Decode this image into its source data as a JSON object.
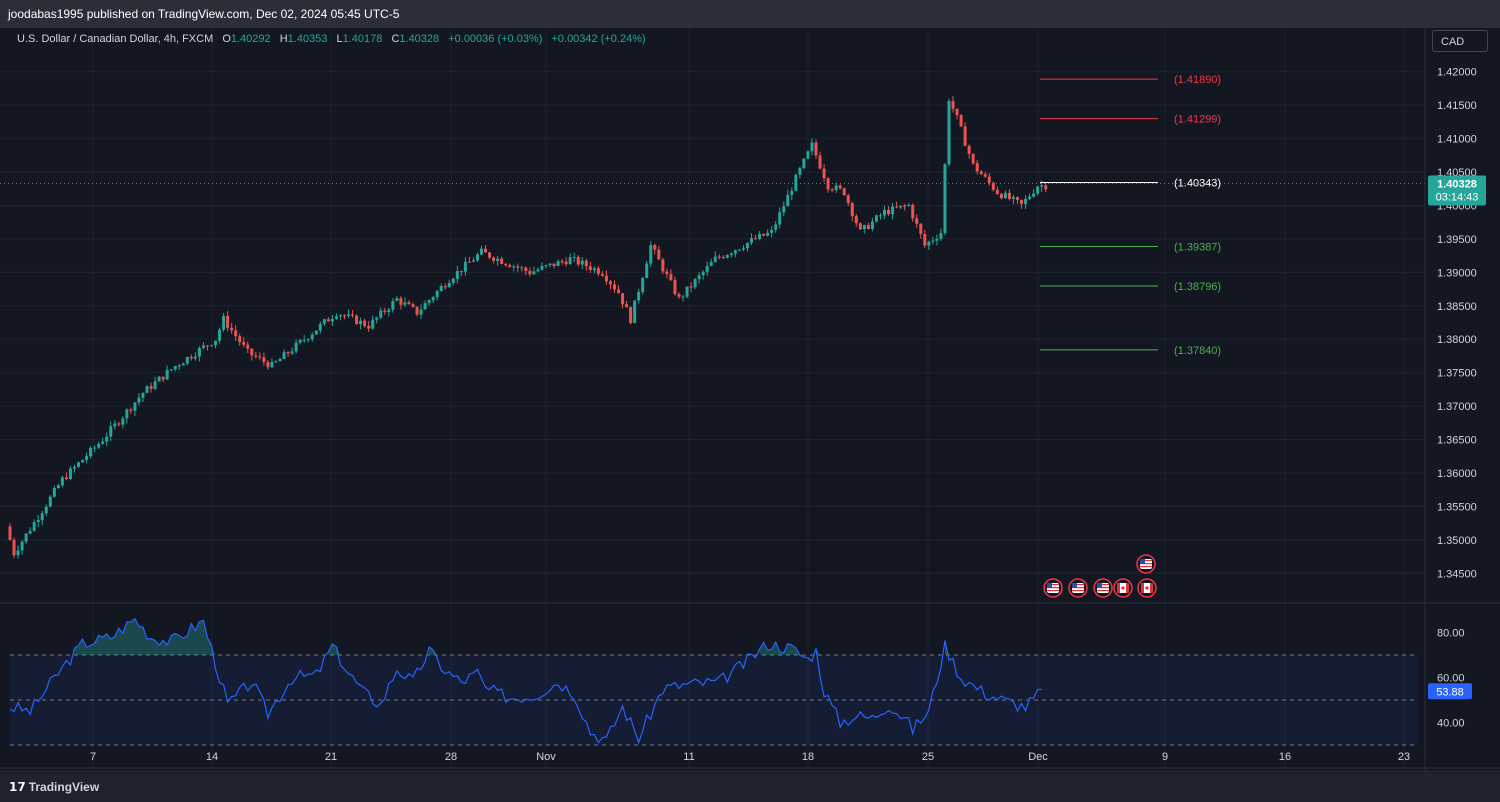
{
  "publisher_line": "joodabas1995 published on TradingView.com, Dec 02, 2024 05:45 UTC-5",
  "legend": {
    "symbol": "U.S. Dollar / Canadian Dollar, 4h, FXCM",
    "open_label": "O",
    "open": "1.40292",
    "high_label": "H",
    "high": "1.40353",
    "low_label": "L",
    "low": "1.40178",
    "close_label": "C",
    "close": "1.40328",
    "change": "+0.00036 (+0.03%)",
    "change2": "+0.00342 (+0.24%)"
  },
  "currency_button": "CAD",
  "current_price": {
    "value": "1.40328",
    "countdown": "03:14:43"
  },
  "rsi_value": "53.88",
  "branding": "TradingView",
  "colors": {
    "up": "#26a69a",
    "down": "#ef5350",
    "rsi": "#2962ff",
    "resistance": "#f23645",
    "support": "#4caf50",
    "pivot": "#ffffff"
  },
  "chart_data": {
    "type": "candlestick",
    "timeframe": "4h",
    "price_axis": {
      "ticks": [
        "1.42000",
        "1.41500",
        "1.41000",
        "1.40500",
        "1.40000",
        "1.39500",
        "1.39000",
        "1.38500",
        "1.38000",
        "1.37500",
        "1.37000",
        "1.36500",
        "1.36000",
        "1.35500",
        "1.35000",
        "1.34500"
      ],
      "range": [
        1.341,
        1.4225
      ]
    },
    "date_axis": {
      "ticks": [
        "7",
        "14",
        "21",
        "28",
        "Nov",
        "11",
        "18",
        "25",
        "Dec",
        "9",
        "16",
        "23"
      ]
    },
    "levels": [
      {
        "label": "(1.41890)",
        "value": 1.4189,
        "kind": "resistance"
      },
      {
        "label": "(1.41299)",
        "value": 1.41299,
        "kind": "resistance"
      },
      {
        "label": "(1.40343)",
        "value": 1.40343,
        "kind": "pivot"
      },
      {
        "label": "(1.39387)",
        "value": 1.39387,
        "kind": "support"
      },
      {
        "label": "(1.38796)",
        "value": 1.38796,
        "kind": "support"
      },
      {
        "label": "(1.37840)",
        "value": 1.3784,
        "kind": "support"
      }
    ],
    "price_path_anchors": [
      [
        0,
        1.352
      ],
      [
        2,
        1.348
      ],
      [
        14,
        1.359
      ],
      [
        24,
        1.365
      ],
      [
        34,
        1.372
      ],
      [
        42,
        1.376
      ],
      [
        52,
        1.38
      ],
      [
        54,
        1.383
      ],
      [
        60,
        1.378
      ],
      [
        66,
        1.376
      ],
      [
        74,
        1.38
      ],
      [
        82,
        1.384
      ],
      [
        90,
        1.382
      ],
      [
        97,
        1.386
      ],
      [
        102,
        1.384
      ],
      [
        110,
        1.389
      ],
      [
        118,
        1.393
      ],
      [
        130,
        1.39
      ],
      [
        140,
        1.392
      ],
      [
        148,
        1.39
      ],
      [
        152,
        1.387
      ],
      [
        155,
        1.383
      ],
      [
        160,
        1.394
      ],
      [
        167,
        1.386
      ],
      [
        176,
        1.392
      ],
      [
        186,
        1.395
      ],
      [
        190,
        1.396
      ],
      [
        196,
        1.404
      ],
      [
        200,
        1.409
      ],
      [
        204,
        1.403
      ],
      [
        208,
        1.402
      ],
      [
        212,
        1.396
      ],
      [
        218,
        1.399
      ],
      [
        224,
        1.4
      ],
      [
        228,
        1.394
      ],
      [
        232,
        1.396
      ],
      [
        234,
        1.416
      ],
      [
        236,
        1.413
      ],
      [
        240,
        1.406
      ],
      [
        246,
        1.402
      ],
      [
        252,
        1.4
      ],
      [
        256,
        1.403
      ]
    ],
    "rsi": {
      "levels": [
        "80.00",
        "60.00",
        "40.00"
      ],
      "range": [
        30,
        90
      ],
      "band": [
        30,
        70
      ],
      "midline": 50,
      "current": 53.88,
      "anchors": [
        [
          0,
          47
        ],
        [
          5,
          45
        ],
        [
          12,
          62
        ],
        [
          18,
          75
        ],
        [
          25,
          78
        ],
        [
          31,
          86
        ],
        [
          35,
          78
        ],
        [
          40,
          76
        ],
        [
          48,
          85
        ],
        [
          54,
          48
        ],
        [
          60,
          58
        ],
        [
          64,
          44
        ],
        [
          70,
          60
        ],
        [
          76,
          61
        ],
        [
          80,
          74
        ],
        [
          84,
          62
        ],
        [
          88,
          53
        ],
        [
          92,
          48
        ],
        [
          96,
          64
        ],
        [
          100,
          58
        ],
        [
          104,
          72
        ],
        [
          108,
          63
        ],
        [
          112,
          58
        ],
        [
          116,
          62
        ],
        [
          118,
          55
        ],
        [
          124,
          51
        ],
        [
          130,
          52
        ],
        [
          136,
          58
        ],
        [
          140,
          53
        ],
        [
          144,
          36
        ],
        [
          148,
          32
        ],
        [
          152,
          47
        ],
        [
          156,
          33
        ],
        [
          162,
          55
        ],
        [
          168,
          57
        ],
        [
          176,
          58
        ],
        [
          182,
          66
        ],
        [
          188,
          75
        ],
        [
          194,
          73
        ],
        [
          198,
          68
        ],
        [
          200,
          72
        ],
        [
          202,
          54
        ],
        [
          206,
          40
        ],
        [
          210,
          43
        ],
        [
          214,
          42
        ],
        [
          218,
          48
        ],
        [
          222,
          42
        ],
        [
          224,
          37
        ],
        [
          228,
          45
        ],
        [
          232,
          74
        ],
        [
          236,
          60
        ],
        [
          242,
          53
        ],
        [
          248,
          49
        ],
        [
          252,
          47
        ],
        [
          256,
          54
        ]
      ]
    }
  }
}
